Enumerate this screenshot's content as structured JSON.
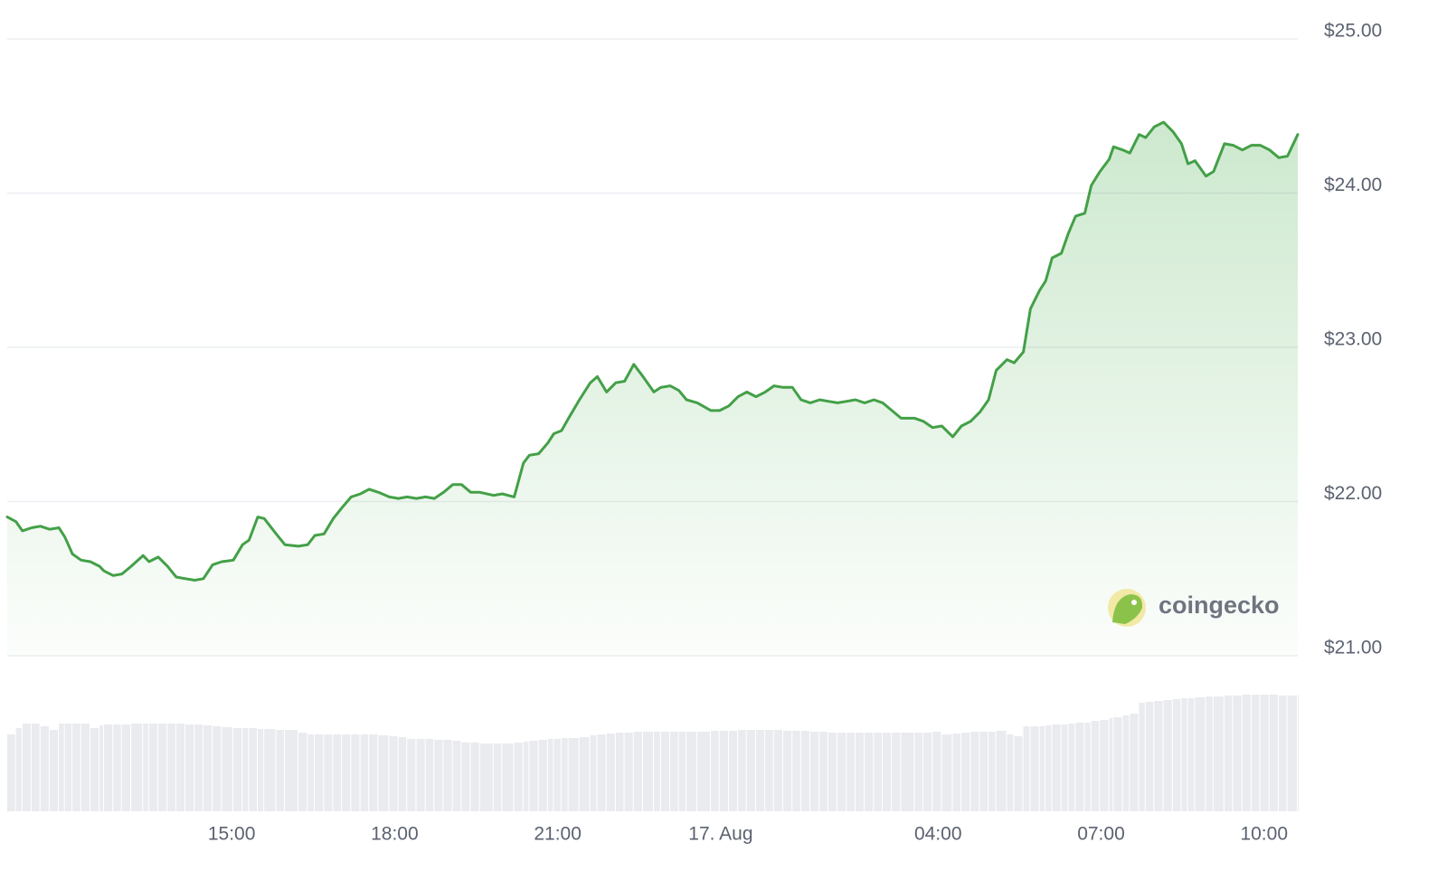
{
  "chart_data": {
    "type": "line",
    "x": [
      10.87,
      11.03,
      11.15,
      11.32,
      11.48,
      11.65,
      11.82,
      11.93,
      12.07,
      12.23,
      12.4,
      12.57,
      12.65,
      12.82,
      12.98,
      13.15,
      13.37,
      13.48,
      13.65,
      13.82,
      13.98,
      14.15,
      14.32,
      14.48,
      14.65,
      14.82,
      15.03,
      15.2,
      15.32,
      15.48,
      15.6,
      15.82,
      15.98,
      16.23,
      16.4,
      16.53,
      16.7,
      16.87,
      17.03,
      17.2,
      17.37,
      17.53,
      17.7,
      17.9,
      18.07,
      18.23,
      18.4,
      18.57,
      18.73,
      18.9,
      19.07,
      19.23,
      19.4,
      19.57,
      19.82,
      19.98,
      20.2,
      20.37,
      20.48,
      20.65,
      20.82,
      20.93,
      21.07,
      21.2,
      21.4,
      21.6,
      21.73,
      21.9,
      22.07,
      22.23,
      22.4,
      22.57,
      22.77,
      22.9,
      23.07,
      23.23,
      23.37,
      23.57,
      23.82,
      23.98,
      24.15,
      24.32,
      24.48,
      24.65,
      24.82,
      24.98,
      25.15,
      25.32,
      25.48,
      25.65,
      25.82,
      25.98,
      26.15,
      26.32,
      26.48,
      26.65,
      26.82,
      26.98,
      27.15,
      27.32,
      27.57,
      27.73,
      27.9,
      28.07,
      28.27,
      28.43,
      28.6,
      28.77,
      28.93,
      29.07,
      29.27,
      29.4,
      29.57,
      29.7,
      29.87,
      29.98,
      30.1,
      30.27,
      30.4,
      30.53,
      30.7,
      30.82,
      30.98,
      31.15,
      31.23,
      31.4,
      31.53,
      31.7,
      31.82,
      31.98,
      32.15,
      32.32,
      32.48,
      32.6,
      32.73,
      32.93,
      33.07,
      33.27,
      33.43,
      33.6,
      33.77,
      33.93,
      34.1,
      34.27,
      34.43,
      34.62
    ],
    "series": [
      {
        "color": "#43a047",
        "values": [
          21.9,
          21.87,
          21.81,
          21.83,
          21.84,
          21.82,
          21.83,
          21.77,
          21.66,
          21.62,
          21.61,
          21.58,
          21.55,
          21.52,
          21.53,
          21.58,
          21.65,
          21.61,
          21.64,
          21.58,
          21.51,
          21.5,
          21.49,
          21.5,
          21.59,
          21.61,
          21.62,
          21.72,
          21.75,
          21.9,
          21.89,
          21.79,
          21.72,
          21.71,
          21.72,
          21.78,
          21.79,
          21.89,
          21.96,
          22.03,
          22.05,
          22.08,
          22.06,
          22.03,
          22.02,
          22.03,
          22.02,
          22.03,
          22.02,
          22.06,
          22.11,
          22.11,
          22.06,
          22.06,
          22.04,
          22.05,
          22.03,
          22.25,
          22.3,
          22.31,
          22.38,
          22.44,
          22.46,
          22.54,
          22.66,
          22.77,
          22.81,
          22.71,
          22.77,
          22.78,
          22.89,
          22.81,
          22.71,
          22.74,
          22.75,
          22.72,
          22.66,
          22.64,
          22.59,
          22.59,
          22.62,
          22.68,
          22.71,
          22.68,
          22.71,
          22.75,
          22.74,
          22.74,
          22.66,
          22.64,
          22.66,
          22.65,
          22.64,
          22.65,
          22.66,
          22.64,
          22.66,
          22.64,
          22.59,
          22.54,
          22.54,
          22.52,
          22.48,
          22.49,
          22.42,
          22.49,
          22.52,
          22.58,
          22.66,
          22.85,
          22.92,
          22.9,
          22.97,
          23.25,
          23.37,
          23.43,
          23.58,
          23.61,
          23.74,
          23.85,
          23.87,
          24.05,
          24.14,
          24.22,
          24.3,
          24.28,
          24.26,
          24.38,
          24.36,
          24.43,
          24.46,
          24.4,
          24.32,
          24.19,
          24.21,
          24.11,
          24.14,
          24.32,
          24.31,
          24.28,
          24.31,
          24.31,
          24.28,
          24.23,
          24.24,
          24.38
        ]
      }
    ],
    "volume": {
      "color": "#e9ebef",
      "values": [
        85,
        92,
        97,
        97,
        94,
        90,
        97,
        97,
        97,
        97,
        92,
        95,
        96,
        96,
        96,
        97,
        97,
        97,
        97,
        97,
        97,
        96,
        96,
        95,
        94,
        93,
        92,
        92,
        92,
        91,
        91,
        90,
        90,
        87,
        85,
        85,
        85,
        85,
        85,
        85,
        85,
        85,
        84,
        83,
        82,
        80,
        80,
        80,
        79,
        79,
        78,
        76,
        76,
        75,
        75,
        75,
        76,
        77,
        78,
        79,
        80,
        80,
        81,
        81,
        82,
        84,
        85,
        86,
        87,
        87,
        88,
        88,
        88,
        88,
        88,
        88,
        88,
        88,
        89,
        89,
        89,
        90,
        90,
        90,
        90,
        90,
        89,
        89,
        89,
        88,
        88,
        87,
        87,
        87,
        87,
        87,
        87,
        87,
        87,
        87,
        87,
        87,
        88,
        85,
        86,
        87,
        88,
        88,
        88,
        89,
        85,
        83,
        94,
        94,
        94,
        95,
        96,
        96,
        97,
        98,
        98,
        100,
        101,
        103,
        104,
        106,
        108,
        120,
        121,
        122,
        123,
        124,
        125,
        125,
        126,
        127,
        127,
        128,
        128,
        129,
        129,
        129,
        129,
        128,
        128,
        129
      ]
    },
    "xlim": [
      10.87,
      34.62
    ],
    "xticks": [
      {
        "value": 15,
        "label": "15:00"
      },
      {
        "value": 18,
        "label": "18:00"
      },
      {
        "value": 21,
        "label": "21:00"
      },
      {
        "value": 24,
        "label": "17. Aug"
      },
      {
        "value": 28,
        "label": "04:00"
      },
      {
        "value": 31,
        "label": "07:00"
      },
      {
        "value": 34,
        "label": "10:00"
      }
    ],
    "ylim": [
      21,
      25
    ],
    "yticks": [
      {
        "value": 21,
        "label": "$21.00"
      },
      {
        "value": 22,
        "label": "$22.00"
      },
      {
        "value": 23,
        "label": "$23.00"
      },
      {
        "value": 24,
        "label": "$24.00"
      },
      {
        "value": 25,
        "label": "$25.00"
      }
    ],
    "grid": true,
    "watermark": "coingecko"
  }
}
